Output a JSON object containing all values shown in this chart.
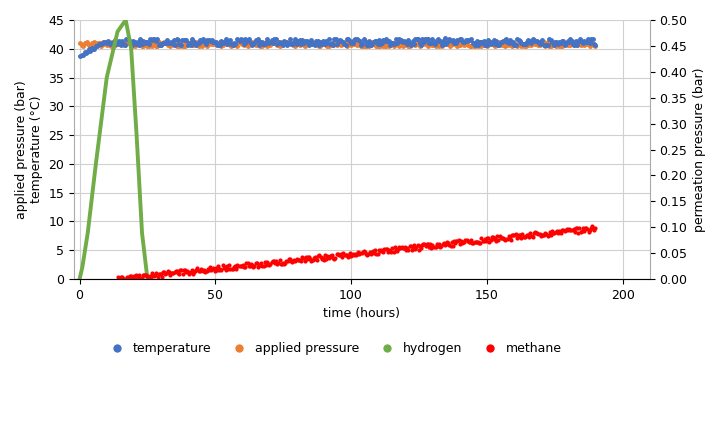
{
  "title": "",
  "xlabel": "time (hours)",
  "ylabel_left1": "applied pressure (bar)",
  "ylabel_left2": "temperature (°C)",
  "ylabel_right": "permeation pressure (bar)",
  "xlim": [
    -2,
    210
  ],
  "ylim_left": [
    0,
    45
  ],
  "ylim_right": [
    0.0,
    0.5
  ],
  "xticks": [
    0,
    50,
    100,
    150,
    200
  ],
  "yticks_left": [
    0,
    5,
    10,
    15,
    20,
    25,
    30,
    35,
    40,
    45
  ],
  "yticks_right": [
    0.0,
    0.05,
    0.1,
    0.15,
    0.2,
    0.25,
    0.3,
    0.35,
    0.4,
    0.45,
    0.5
  ],
  "legend_labels": [
    "temperature",
    "applied pressure",
    "hydrogen",
    "methane"
  ],
  "legend_colors": [
    "#4472C4",
    "#ED7D31",
    "#70AD47",
    "#FF0000"
  ],
  "series": {
    "temperature": {
      "color": "#4472C4",
      "marker": "o",
      "markersize": 2.5,
      "x_start": 0.3,
      "x_end": 190,
      "y_mean": 41.2,
      "y_start": 39.0,
      "y_noise": 0.6,
      "n_points": 370
    },
    "applied_pressure": {
      "color": "#ED7D31",
      "marker": "o",
      "markersize": 2.5,
      "x_start": 0.3,
      "x_end": 190,
      "y_mean": 40.8,
      "y_noise": 0.4,
      "n_points": 370
    },
    "hydrogen": {
      "color": "#70AD47",
      "linewidth": 2.8,
      "x_rise": [
        0,
        1,
        3,
        6,
        10,
        14,
        17
      ],
      "y_rise": [
        0,
        2,
        8,
        20,
        35,
        43,
        45
      ],
      "x_fall": [
        17,
        19,
        21,
        23,
        25
      ],
      "y_fall": [
        45,
        40,
        25,
        8,
        0
      ]
    },
    "methane": {
      "color": "#FF0000",
      "marker": "o",
      "markersize": 2.0,
      "x_start": 14,
      "x_end": 190,
      "y_start": 0.0,
      "y_end": 8.8,
      "y_noise": 0.45,
      "n_points": 420
    }
  },
  "background_color": "#FFFFFF",
  "grid_color": "#D0D0D0",
  "font_size_labels": 9,
  "font_size_ticks": 9,
  "font_size_legend": 9
}
